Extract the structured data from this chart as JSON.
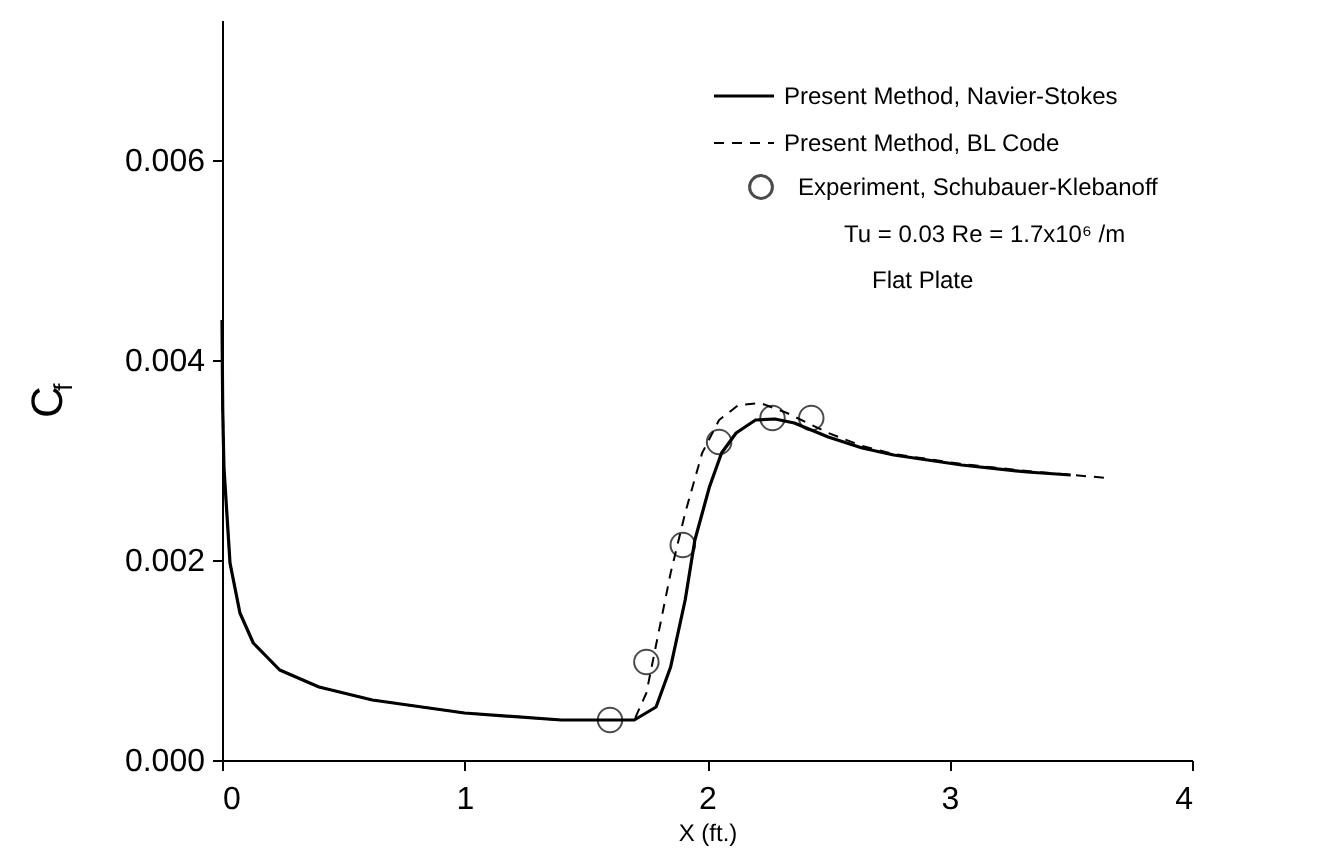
{
  "chart_data": {
    "type": "line",
    "xlabel": "X (ft.)",
    "ylabel": "C$_{f}$",
    "xlim": [
      0,
      4
    ],
    "xticks": [
      0,
      1,
      2,
      3,
      4
    ],
    "ylim": [
      0,
      0.0074
    ],
    "yticks": [
      {
        "value": 0,
        "label": "0.000"
      },
      0.002,
      0.004,
      0.006
    ],
    "legend": "top right",
    "grid": false,
    "annotations": [
      "Tu = 0.03    Re = 1.7x10⁶ /m",
      "Flat Plate"
    ],
    "series": [
      {
        "name": "Present Method, Navier-Stokes",
        "color": "#000000",
        "line_style": "solid",
        "marker": "none",
        "x": [
          0,
          0.003,
          0.008,
          0.033,
          0.074,
          0.129,
          0.238,
          0.4,
          0.62,
          1.0,
          1.4,
          1.7,
          1.79,
          1.85,
          1.91,
          1.95,
          2.01,
          2.06,
          2.12,
          2.2,
          2.28,
          2.36,
          2.5,
          2.64,
          2.77,
          3.05,
          3.32,
          3.5
        ],
        "values": [
          0.0044,
          0.0035,
          0.00293,
          0.00197,
          0.00147,
          0.00117,
          0.0009,
          0.00073,
          0.0006,
          0.00047,
          0.0004,
          0.0004,
          0.00053,
          0.00093,
          0.0016,
          0.0022,
          0.00273,
          0.00307,
          0.00327,
          0.0034,
          0.00341,
          0.00337,
          0.00323,
          0.00312,
          0.00305,
          0.00295,
          0.00288,
          0.00285
        ]
      },
      {
        "name": "Present Method, BL Code",
        "color": "#000000",
        "line_style": "dashed",
        "marker": "none",
        "x": [
          0.003,
          0.008,
          0.033,
          0.074,
          0.129,
          0.238,
          0.4,
          0.62,
          1.0,
          1.4,
          1.7,
          1.75,
          1.8,
          1.85,
          1.91,
          1.98,
          2.05,
          2.13,
          2.22,
          2.33,
          2.5,
          2.64,
          2.77,
          3.05,
          3.32,
          3.65
        ],
        "values": [
          0.0036,
          0.00293,
          0.00197,
          0.00147,
          0.00117,
          0.0009,
          0.00073,
          0.0006,
          0.00047,
          0.0004,
          0.0004,
          0.00067,
          0.00127,
          0.00187,
          0.00247,
          0.00307,
          0.0034,
          0.00355,
          0.00357,
          0.00347,
          0.00327,
          0.00314,
          0.00306,
          0.00296,
          0.00289,
          0.00282
        ]
      },
      {
        "name": "Experiment, Schubauer-Klebanoff",
        "color": "#000000",
        "type": "scatter",
        "marker": "circle",
        "x": [
          1.6,
          1.75,
          1.9,
          2.05,
          2.27,
          2.43
        ],
        "values": [
          0.0004,
          0.00098,
          0.00215,
          0.00318,
          0.00342,
          0.00342
        ]
      }
    ]
  }
}
